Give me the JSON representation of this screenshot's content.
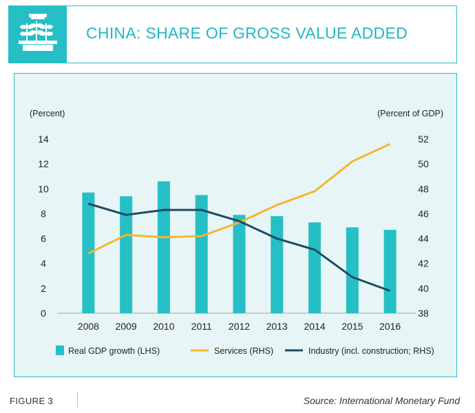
{
  "header": {
    "title": "CHINA: SHARE OF GROSS VALUE ADDED",
    "icon": "plant-seedlings-icon",
    "accent_color": "#26bfc6"
  },
  "footer": {
    "figure_label": "FIGURE 3",
    "source": "Source: International Monetary Fund"
  },
  "chart_data": {
    "type": "bar",
    "title": "CHINA: SHARE OF GROSS VALUE ADDED",
    "categories": [
      "2008",
      "2009",
      "2010",
      "2011",
      "2012",
      "2013",
      "2014",
      "2015",
      "2016"
    ],
    "left_axis": {
      "label": "(Percent)",
      "range": [
        0,
        14
      ],
      "ticks": [
        0,
        2,
        4,
        6,
        8,
        10,
        12,
        14
      ]
    },
    "right_axis": {
      "label": "(Percent of GDP)",
      "range": [
        38,
        52
      ],
      "ticks": [
        38,
        40,
        42,
        44,
        46,
        48,
        50,
        52
      ]
    },
    "series": [
      {
        "name": "Real GDP growth (LHS)",
        "type": "bar",
        "axis": "left",
        "color": "#26bfc6",
        "values": [
          9.7,
          9.4,
          10.6,
          9.5,
          7.9,
          7.8,
          7.3,
          6.9,
          6.7
        ]
      },
      {
        "name": "Services (RHS)",
        "type": "line",
        "axis": "right",
        "color": "#f7b52c",
        "values": [
          42.8,
          44.3,
          44.1,
          44.2,
          45.3,
          46.7,
          47.8,
          50.2,
          51.6
        ]
      },
      {
        "name": "Industry (incl. construction; RHS)",
        "type": "line",
        "axis": "right",
        "color": "#1c4a63",
        "values": [
          46.8,
          45.9,
          46.3,
          46.3,
          45.4,
          44.0,
          43.1,
          40.9,
          39.8
        ]
      }
    ],
    "grid": false,
    "legend": "bottom"
  }
}
